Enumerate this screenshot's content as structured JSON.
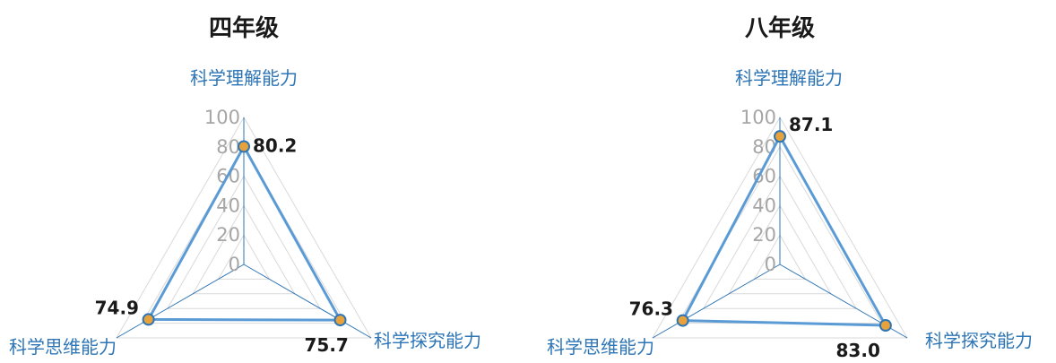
{
  "colors": {
    "series": "#5b9bd5",
    "marker_fill": "#e7a23c",
    "marker_stroke": "#2e75b6",
    "spoke": "#2e75b6",
    "grid": "#d9d9d9",
    "axis_label": "#2e75b6",
    "tick": "#a6a6a6"
  },
  "chart_data": [
    {
      "type": "radar",
      "title": "四年级",
      "axes": [
        "科学理解能力",
        "科学探究能力",
        "科学思维能力"
      ],
      "ticks": [
        0,
        20,
        40,
        60,
        80,
        100
      ],
      "range": [
        0,
        100
      ],
      "grid": true,
      "legend": "none",
      "series": [
        {
          "values": [
            80.2,
            75.7,
            74.9
          ],
          "labels": [
            "80.2",
            "75.7",
            "74.9"
          ]
        }
      ]
    },
    {
      "type": "radar",
      "title": "八年级",
      "axes": [
        "科学理解能力",
        "科学探究能力",
        "科学思维能力"
      ],
      "ticks": [
        0,
        20,
        40,
        60,
        80,
        100
      ],
      "range": [
        0,
        100
      ],
      "grid": true,
      "legend": "none",
      "series": [
        {
          "values": [
            87.1,
            83.0,
            76.3
          ],
          "labels": [
            "87.1",
            "83.0",
            "76.3"
          ]
        }
      ]
    }
  ]
}
